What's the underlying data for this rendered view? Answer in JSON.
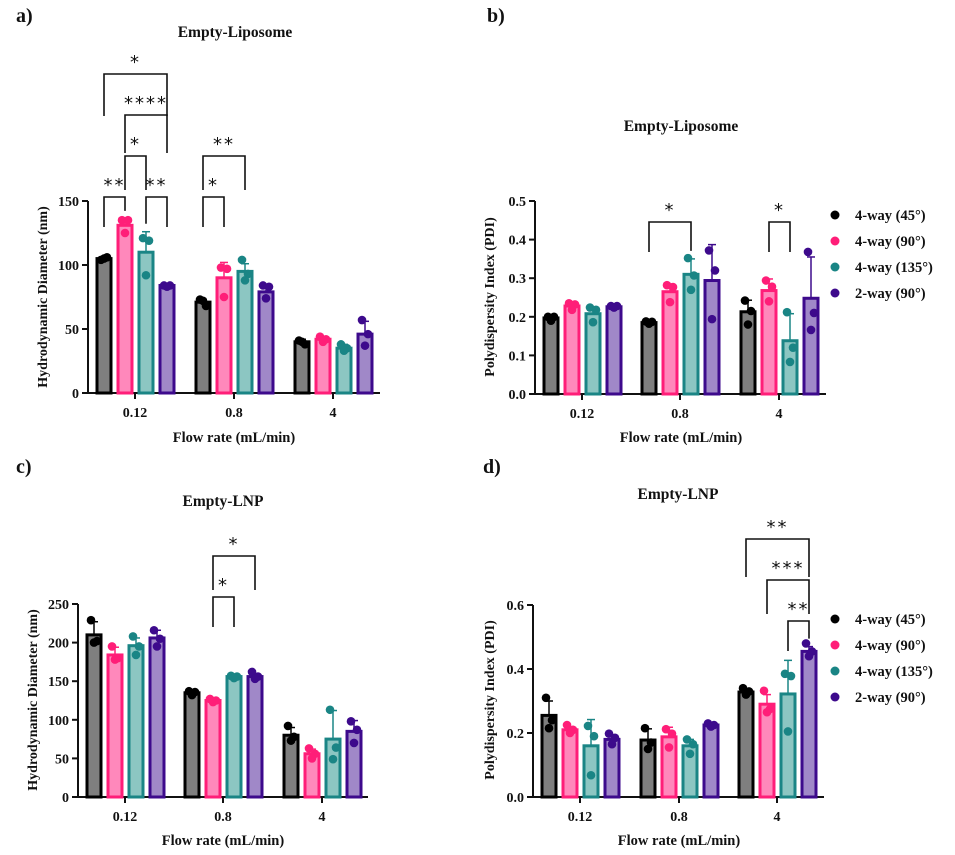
{
  "colors": {
    "series_stroke": [
      "#000000",
      "#ff1e78",
      "#1a8585",
      "#3d0a8c"
    ],
    "series_fill": [
      "#7f7f7f",
      "#ff88bb",
      "#8cc6c2",
      "#a088c8"
    ]
  },
  "legend": [
    "4-way (45°)",
    "4-way (90°)",
    "4-way (135°)",
    "2-way (90°)"
  ],
  "chart_data": [
    {
      "panel": "a)",
      "type": "bar",
      "title": "Empty-Liposome",
      "xlabel": "Flow rate (mL/min)",
      "ylabel": "Hydrodynamic Diameter (nm)",
      "categories": [
        "0.12",
        "0.8",
        "4"
      ],
      "ylim": [
        0,
        150
      ],
      "yticks": [
        0,
        50,
        100,
        150
      ],
      "ytick_labels": [
        "0",
        "50",
        "100",
        "150"
      ],
      "legend": false,
      "series": [
        {
          "name": "4-way (45°)",
          "values": [
            105,
            71,
            40
          ],
          "errors": [
            1,
            2,
            2
          ],
          "points": [
            [
              104,
              106,
              105
            ],
            [
              73,
              68,
              72
            ],
            [
              41,
              38,
              40
            ]
          ]
        },
        {
          "name": "4-way (90°)",
          "values": [
            131,
            90,
            42
          ],
          "errors": [
            5,
            12,
            2
          ],
          "points": [
            [
              135,
              135,
              125
            ],
            [
              98,
              97,
              75
            ],
            [
              44,
              42,
              40
            ]
          ]
        },
        {
          "name": "4-way (135°)",
          "values": [
            110,
            95,
            35
          ],
          "errors": [
            16,
            6,
            3
          ],
          "points": [
            [
              121,
              119,
              92
            ],
            [
              104,
              93,
              88
            ],
            [
              38,
              35,
              33
            ]
          ]
        },
        {
          "name": "2-way (90°)",
          "values": [
            84,
            79,
            46
          ],
          "errors": [
            1,
            5,
            10
          ],
          "points": [
            [
              84,
              84,
              83
            ],
            [
              84,
              83,
              74
            ],
            [
              57,
              46,
              37
            ]
          ]
        }
      ],
      "significance": [
        {
          "from": [
            0,
            0
          ],
          "to": [
            0,
            1
          ],
          "label": "**",
          "level": 1
        },
        {
          "from": [
            0,
            2
          ],
          "to": [
            0,
            3
          ],
          "label": "**",
          "level": 1
        },
        {
          "from": [
            0,
            1
          ],
          "to": [
            0,
            2
          ],
          "label": "*",
          "level": 2
        },
        {
          "from": [
            0,
            1
          ],
          "to": [
            0,
            3
          ],
          "label": "****",
          "level": 3
        },
        {
          "from": [
            0,
            0
          ],
          "to": [
            0,
            3
          ],
          "label": "*",
          "level": 4
        },
        {
          "from": [
            1,
            0
          ],
          "to": [
            1,
            1
          ],
          "label": "*",
          "level": 1
        },
        {
          "from": [
            1,
            0
          ],
          "to": [
            1,
            2
          ],
          "label": "**",
          "level": 2
        }
      ]
    },
    {
      "panel": "b)",
      "type": "bar",
      "title": "Empty-Liposome",
      "xlabel": "Flow rate (mL/min)",
      "ylabel": "Polydispersity Index (PDI)",
      "categories": [
        "0.12",
        "0.8",
        "4"
      ],
      "ylim": [
        0,
        0.5
      ],
      "yticks": [
        0,
        0.1,
        0.2,
        0.3,
        0.4,
        0.5
      ],
      "ytick_labels": [
        "0.0",
        "0.1",
        "0.2",
        "0.3",
        "0.4",
        "0.5"
      ],
      "legend": true,
      "legend_position": "right",
      "series": [
        {
          "name": "4-way (45°)",
          "values": [
            0.197,
            0.185,
            0.213
          ],
          "errors": [
            0.005,
            0.003,
            0.03
          ],
          "points": [
            [
              0.2,
              0.2,
              0.19
            ],
            [
              0.188,
              0.187,
              0.182
            ],
            [
              0.242,
              0.215,
              0.18
            ]
          ]
        },
        {
          "name": "4-way (90°)",
          "values": [
            0.228,
            0.265,
            0.268
          ],
          "errors": [
            0.01,
            0.02,
            0.03
          ],
          "points": [
            [
              0.235,
              0.232,
              0.218
            ],
            [
              0.282,
              0.277,
              0.238
            ],
            [
              0.294,
              0.278,
              0.24
            ]
          ]
        },
        {
          "name": "4-way (135°)",
          "values": [
            0.208,
            0.31,
            0.138
          ],
          "errors": [
            0.015,
            0.04,
            0.07
          ],
          "points": [
            [
              0.224,
              0.218,
              0.186
            ],
            [
              0.352,
              0.307,
              0.27
            ],
            [
              0.212,
              0.12,
              0.083
            ]
          ]
        },
        {
          "name": "2-way (90°)",
          "values": [
            0.226,
            0.294,
            0.248
          ],
          "errors": [
            0.003,
            0.093,
            0.107
          ],
          "points": [
            [
              0.228,
              0.228,
              0.224
            ],
            [
              0.372,
              0.32,
              0.194
            ],
            [
              0.368,
              0.21,
              0.166
            ]
          ]
        }
      ],
      "significance": [
        {
          "from": [
            1,
            0
          ],
          "to": [
            1,
            2
          ],
          "label": "*",
          "level": 1
        },
        {
          "from": [
            2,
            1
          ],
          "to": [
            2,
            2
          ],
          "label": "*",
          "level": 1
        }
      ]
    },
    {
      "panel": "c)",
      "type": "bar",
      "title": "Empty-LNP",
      "xlabel": "Flow rate (mL/min)",
      "ylabel": "Hydrodynamic Diameter (nm)",
      "categories": [
        "0.12",
        "0.8",
        "4"
      ],
      "ylim": [
        0,
        250
      ],
      "yticks": [
        0,
        50,
        100,
        150,
        200,
        250
      ],
      "ytick_labels": [
        "0",
        "50",
        "100",
        "150",
        "200",
        "250"
      ],
      "legend": false,
      "series": [
        {
          "name": "4-way (45°)",
          "values": [
            210,
            135,
            80
          ],
          "errors": [
            17,
            2,
            10
          ],
          "points": [
            [
              229,
              202,
              200
            ],
            [
              137,
              136,
              132
            ],
            [
              92,
              78,
              73
            ]
          ]
        },
        {
          "name": "4-way (90°)",
          "values": [
            184,
            125,
            56
          ],
          "errors": [
            10,
            2,
            6
          ],
          "points": [
            [
              195,
              180,
              178
            ],
            [
              127,
              125,
              123
            ],
            [
              63,
              56,
              50
            ]
          ]
        },
        {
          "name": "4-way (135°)",
          "values": [
            196,
            156,
            75
          ],
          "errors": [
            10,
            2,
            37
          ],
          "points": [
            [
              208,
              195,
              184
            ],
            [
              157,
              156,
              154
            ],
            [
              113,
              64,
              49
            ]
          ]
        },
        {
          "name": "2-way (90°)",
          "values": [
            206,
            156,
            85
          ],
          "errors": [
            10,
            4,
            14
          ],
          "points": [
            [
              216,
              205,
              195
            ],
            [
              162,
              156,
              153
            ],
            [
              98,
              87,
              70
            ]
          ]
        }
      ],
      "significance": [
        {
          "from": [
            1,
            1
          ],
          "to": [
            1,
            2
          ],
          "label": "*",
          "level": 1
        },
        {
          "from": [
            1,
            1
          ],
          "to": [
            1,
            3
          ],
          "label": "*",
          "level": 2
        }
      ]
    },
    {
      "panel": "d)",
      "type": "bar",
      "title": "Empty-LNP",
      "xlabel": "Flow rate (mL/min)",
      "ylabel": "Polydispersity Index (PDI)",
      "categories": [
        "0.12",
        "0.8",
        "4"
      ],
      "ylim": [
        0,
        0.6
      ],
      "yticks": [
        0,
        0.2,
        0.4,
        0.6
      ],
      "ytick_labels": [
        "0.0",
        "0.2",
        "0.4",
        "0.6"
      ],
      "legend": true,
      "legend_position": "right",
      "series": [
        {
          "name": "4-way (45°)",
          "values": [
            0.255,
            0.178,
            0.328
          ],
          "errors": [
            0.045,
            0.035,
            0.01
          ],
          "points": [
            [
              0.31,
              0.24,
              0.215
            ],
            [
              0.215,
              0.17,
              0.15
            ],
            [
              0.34,
              0.33,
              0.32
            ]
          ]
        },
        {
          "name": "4-way (90°)",
          "values": [
            0.21,
            0.188,
            0.29
          ],
          "errors": [
            0.01,
            0.03,
            0.03
          ],
          "points": [
            [
              0.225,
              0.21,
              0.2
            ],
            [
              0.212,
              0.198,
              0.155
            ],
            [
              0.332,
              0.275,
              0.265
            ]
          ]
        },
        {
          "name": "4-way (135°)",
          "values": [
            0.16,
            0.16,
            0.322
          ],
          "errors": [
            0.082,
            0.02,
            0.105
          ],
          "points": [
            [
              0.222,
              0.19,
              0.068
            ],
            [
              0.18,
              0.165,
              0.135
            ],
            [
              0.385,
              0.378,
              0.205
            ]
          ]
        },
        {
          "name": "2-way (90°)",
          "values": [
            0.18,
            0.225,
            0.455
          ],
          "errors": [
            0.01,
            0.005,
            0.015
          ],
          "points": [
            [
              0.198,
              0.185,
              0.165
            ],
            [
              0.23,
              0.225,
              0.22
            ],
            [
              0.48,
              0.455,
              0.44
            ]
          ]
        }
      ],
      "significance": [
        {
          "from": [
            2,
            2
          ],
          "to": [
            2,
            3
          ],
          "label": "**",
          "level": 1
        },
        {
          "from": [
            2,
            1
          ],
          "to": [
            2,
            3
          ],
          "label": "***",
          "level": 2
        },
        {
          "from": [
            2,
            0
          ],
          "to": [
            2,
            3
          ],
          "label": "**",
          "level": 3
        }
      ]
    }
  ]
}
